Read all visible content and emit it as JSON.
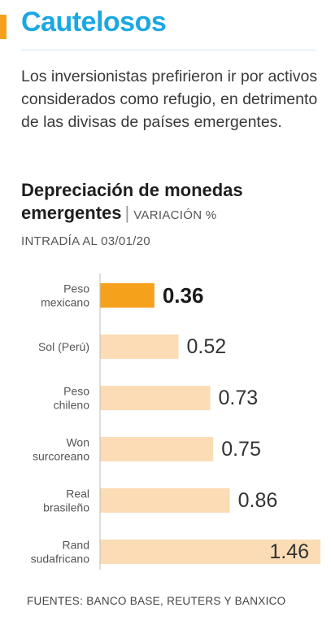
{
  "headline": "Cautelosos",
  "intro": "Los inversionistas prefirieron ir por activos considerados como refugio, en detrimento de las divisas de países emergentes.",
  "colors": {
    "accent": "#f5a11c",
    "headline": "#1aa8e2",
    "bar_highlight": "#f5a11c",
    "bar_default": "#fbdcb4"
  },
  "chart_data": {
    "type": "bar",
    "orientation": "horizontal",
    "title": "Depreciación de monedas emergentes",
    "subtitle": "VARIACIÓN %",
    "subtitle2": "INTRADÍA AL 03/01/20",
    "categories": [
      [
        "Peso",
        "mexicano"
      ],
      [
        "Sol (Perú)"
      ],
      [
        "Peso",
        "chileno"
      ],
      [
        "Won",
        "surcoreano"
      ],
      [
        "Real",
        "brasileño"
      ],
      [
        "Rand",
        "sudafricano"
      ]
    ],
    "values": [
      0.36,
      0.52,
      0.73,
      0.75,
      0.86,
      1.46
    ],
    "value_labels": [
      "0.36",
      "0.52",
      "0.73",
      "0.75",
      "0.86",
      "1.46"
    ],
    "highlight_index": 0,
    "xlim": [
      0,
      1.46
    ]
  },
  "source": "FUENTES: BANCO BASE, REUTERS Y BANXICO"
}
